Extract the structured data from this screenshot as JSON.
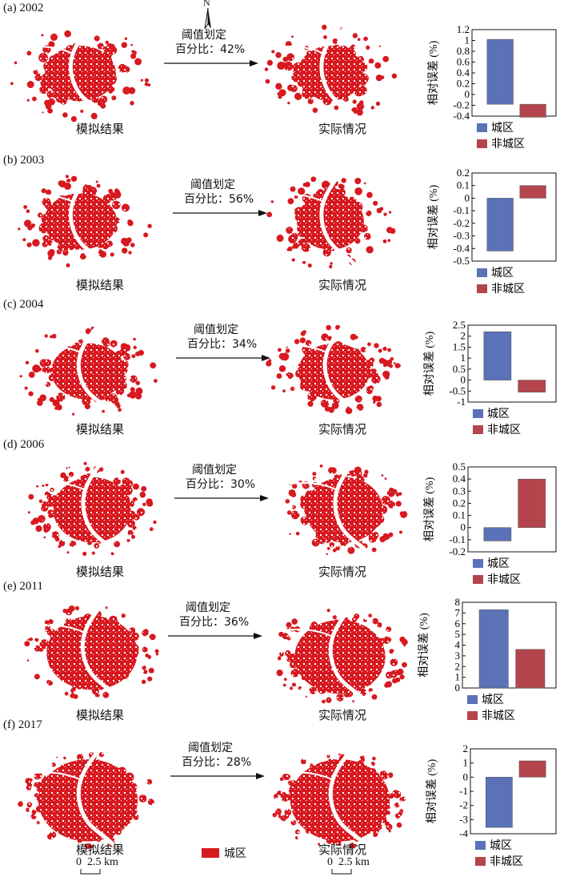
{
  "colors": {
    "urban": "#d71920",
    "bar_urban": "#5b72b8",
    "bar_nonurban": "#b5454d",
    "text": "#111111"
  },
  "compass": {
    "label": "N"
  },
  "legend": {
    "urban_label": "城区"
  },
  "scale_bar": {
    "label": "0  2.5 km"
  },
  "panels": [
    {
      "label": "(a) 2002",
      "sim_caption": "模拟结果",
      "act_caption": "实际情况",
      "threshold_line1": "阈值划定",
      "threshold_line2": "百分比：42%"
    },
    {
      "label": "(b) 2003",
      "sim_caption": "模拟结果",
      "act_caption": "实际情况",
      "threshold_line1": "阈值划定",
      "threshold_line2": "百分比：56%"
    },
    {
      "label": "(c) 2004",
      "sim_caption": "模拟结果",
      "act_caption": "实际情况",
      "threshold_line1": "阈值划定",
      "threshold_line2": "百分比：34%"
    },
    {
      "label": "(d) 2006",
      "sim_caption": "模拟结果",
      "act_caption": "实际情况",
      "threshold_line1": "阈值划定",
      "threshold_line2": "百分比：30%"
    },
    {
      "label": "(e) 2011",
      "sim_caption": "模拟结果",
      "act_caption": "实际情况",
      "threshold_line1": "阈值划定",
      "threshold_line2": "百分比：36%"
    },
    {
      "label": "(f) 2017",
      "sim_caption": "模拟结果",
      "act_caption": "实际情况",
      "threshold_line1": "阈值划定",
      "threshold_line2": "百分比：28%"
    }
  ],
  "chart_data": [
    {
      "type": "bar",
      "ylabel": "相对误差 (%)",
      "ylim": [
        -0.4,
        1.2
      ],
      "ticks": [
        -0.4,
        -0.2,
        0,
        0.2,
        0.4,
        0.6,
        0.8,
        1.0,
        1.2
      ],
      "tick_labels": [
        "-0.4",
        "-0.2",
        "0",
        "0.2",
        "0.4",
        "0.6",
        "0.8",
        "1",
        "1.2"
      ],
      "series": [
        {
          "name": "城区",
          "values": [
            1.02
          ],
          "base": -0.18
        },
        {
          "name": "非城区",
          "values": [
            -0.42
          ],
          "base": -0.18
        }
      ]
    },
    {
      "type": "bar",
      "ylabel": "相对误差 (%)",
      "ylim": [
        -0.5,
        0.2
      ],
      "ticks": [
        -0.5,
        -0.4,
        -0.3,
        -0.2,
        -0.1,
        0,
        0.1,
        0.2
      ],
      "tick_labels": [
        "-0.5",
        "-0.4",
        "-0.3",
        "-0.2",
        "-0.1",
        "0",
        "0.1",
        "0.2"
      ],
      "series": [
        {
          "name": "城区",
          "values": [
            -0.42
          ],
          "base": 0
        },
        {
          "name": "非城区",
          "values": [
            0.1
          ],
          "base": 0
        }
      ]
    },
    {
      "type": "bar",
      "ylabel": "相对误差 (%)",
      "ylim": [
        -1,
        2.5
      ],
      "ticks": [
        -1,
        -0.5,
        0,
        0.5,
        1,
        1.5,
        2,
        2.5
      ],
      "tick_labels": [
        "-1",
        "-0.5",
        "0",
        "0.5",
        "1",
        "1.5",
        "2",
        "2.5"
      ],
      "series": [
        {
          "name": "城区",
          "values": [
            2.2
          ],
          "base": 0
        },
        {
          "name": "非城区",
          "values": [
            -0.55
          ],
          "base": 0
        }
      ]
    },
    {
      "type": "bar",
      "ylabel": "相对误差 (%)",
      "ylim": [
        -0.2,
        0.5
      ],
      "ticks": [
        -0.2,
        -0.1,
        0,
        0.1,
        0.2,
        0.3,
        0.4,
        0.5
      ],
      "tick_labels": [
        "-0.2",
        "-0.1",
        "0",
        "0.1",
        "0.2",
        "0.3",
        "0.4",
        "0.5"
      ],
      "series": [
        {
          "name": "城区",
          "values": [
            -0.11
          ],
          "base": 0
        },
        {
          "name": "非城区",
          "values": [
            0.4
          ],
          "base": 0
        }
      ]
    },
    {
      "type": "bar",
      "ylabel": "相对误差 (%)",
      "ylim": [
        0,
        8
      ],
      "ticks": [
        0,
        1,
        2,
        3,
        4,
        5,
        6,
        7,
        8
      ],
      "tick_labels": [
        "0",
        "1",
        "2",
        "3",
        "4",
        "5",
        "6",
        "7",
        "8"
      ],
      "series": [
        {
          "name": "城区",
          "values": [
            7.3
          ],
          "base": 0
        },
        {
          "name": "非城区",
          "values": [
            3.6
          ],
          "base": 0
        }
      ]
    },
    {
      "type": "bar",
      "ylabel": "相对误差 (%)",
      "ylim": [
        -4,
        2
      ],
      "ticks": [
        -4,
        -3,
        -2,
        -1,
        0,
        1,
        2
      ],
      "tick_labels": [
        "-4",
        "-3",
        "-2",
        "-1",
        "0",
        "1",
        "2"
      ],
      "series": [
        {
          "name": "城区",
          "values": [
            -3.55
          ],
          "base": 0
        },
        {
          "name": "非城区",
          "values": [
            1.15
          ],
          "base": 0
        }
      ]
    }
  ]
}
